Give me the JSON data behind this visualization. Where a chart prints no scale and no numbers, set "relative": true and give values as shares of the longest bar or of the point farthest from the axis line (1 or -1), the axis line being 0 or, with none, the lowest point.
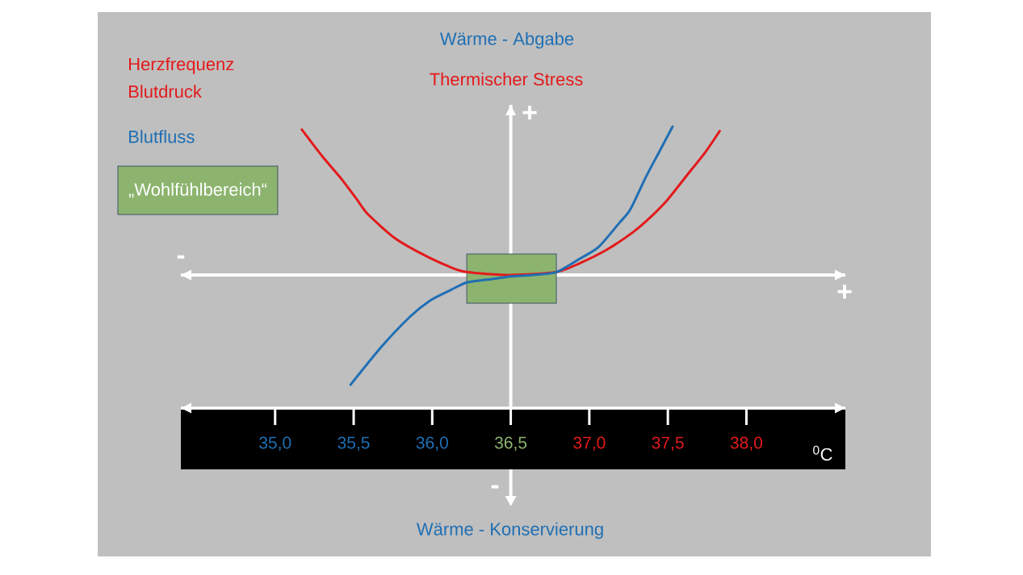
{
  "chart_data": {
    "type": "line",
    "relative": true,
    "xlabel": "$^{0}$C",
    "xlim": [
      34.4,
      38.63
    ],
    "xticks": [
      {
        "value": 35,
        "label": "35,0"
      },
      {
        "value": 35.5,
        "label": "35,5"
      },
      {
        "value": 36,
        "label": "36,0"
      },
      {
        "value": 36.5,
        "label": "36,5"
      },
      {
        "value": 37,
        "label": "37,0"
      },
      {
        "value": 37.5,
        "label": "37,5"
      },
      {
        "value": 38,
        "label": "38,0"
      }
    ],
    "series": [
      {
        "name": "Herzfrequenz Blutdruck",
        "color": "#e31a1c",
        "x": [
          35.17,
          35.3,
          35.42,
          35.52,
          35.59,
          35.76,
          35.92,
          36.1,
          36.22,
          36.5,
          36.79,
          36.94,
          37.11,
          37.28,
          37.4,
          37.5,
          37.62,
          37.74,
          37.83
        ],
        "values": [
          0.98,
          0.8,
          0.65,
          0.51,
          0.41,
          0.25,
          0.15,
          0.06,
          0.02,
          0.0,
          0.02,
          0.08,
          0.17,
          0.29,
          0.4,
          0.51,
          0.67,
          0.83,
          0.97
        ]
      },
      {
        "name": "Blutfluss",
        "color": "#1f6fb4",
        "x": [
          35.48,
          35.68,
          35.86,
          35.99,
          36.12,
          36.22,
          36.36,
          36.5,
          36.64,
          36.79,
          36.94,
          37.06,
          37.19,
          37.26,
          37.36,
          37.45,
          37.53
        ],
        "values": [
          -0.74,
          -0.48,
          -0.28,
          -0.17,
          -0.1,
          -0.05,
          -0.03,
          -0.01,
          0.0,
          0.02,
          0.11,
          0.19,
          0.35,
          0.44,
          0.66,
          0.84,
          1.0
        ]
      }
    ],
    "bands": [
      {
        "axis": "x",
        "from": 36.22,
        "to": 36.79,
        "color": "#8cb46e"
      }
    ],
    "ref_lines": [
      {
        "axis": "x",
        "value": 36.5,
        "color": "#ffffff"
      }
    ],
    "annotations": [
      "Wärme - Abgabe",
      "Thermischer Stress",
      "Wärme - Konservierung",
      "+",
      "-",
      "-",
      "+",
      "„Wohlfühlbereich“"
    ],
    "legend": "top left"
  }
}
